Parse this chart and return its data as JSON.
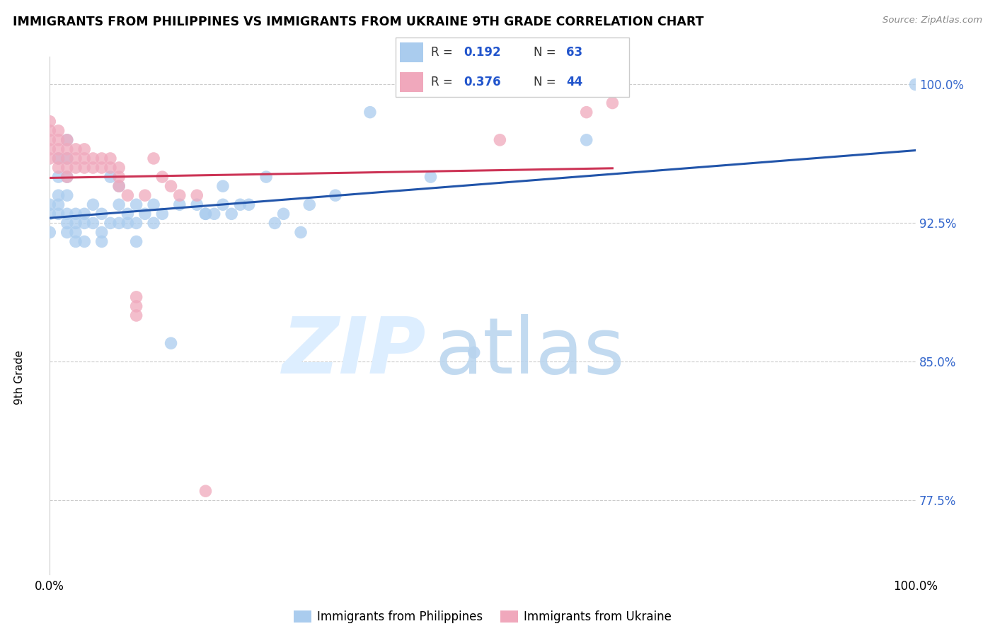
{
  "title": "IMMIGRANTS FROM PHILIPPINES VS IMMIGRANTS FROM UKRAINE 9TH GRADE CORRELATION CHART",
  "source": "Source: ZipAtlas.com",
  "ylabel": "9th Grade",
  "xlim": [
    0,
    1
  ],
  "ylim": [
    0.735,
    1.015
  ],
  "yticks": [
    0.775,
    0.85,
    0.925,
    1.0
  ],
  "ytick_labels": [
    "77.5%",
    "85.0%",
    "92.5%",
    "100.0%"
  ],
  "xticks": [
    0.0,
    0.2,
    0.4,
    0.6,
    0.8,
    1.0
  ],
  "xtick_labels": [
    "0.0%",
    "",
    "",
    "",
    "",
    "100.0%"
  ],
  "r_philippines": 0.192,
  "n_philippines": 63,
  "r_ukraine": 0.376,
  "n_ukraine": 44,
  "blue_scatter_color": "#aaccee",
  "pink_scatter_color": "#f0a8bc",
  "blue_line_color": "#2255aa",
  "pink_line_color": "#cc3355",
  "legend_r_color": "#2255cc",
  "philippines_x": [
    0.0,
    0.0,
    0.0,
    0.01,
    0.01,
    0.01,
    0.01,
    0.01,
    0.02,
    0.02,
    0.02,
    0.02,
    0.02,
    0.02,
    0.02,
    0.03,
    0.03,
    0.03,
    0.03,
    0.04,
    0.04,
    0.04,
    0.05,
    0.05,
    0.06,
    0.06,
    0.06,
    0.07,
    0.07,
    0.08,
    0.08,
    0.08,
    0.09,
    0.09,
    0.1,
    0.1,
    0.1,
    0.11,
    0.12,
    0.12,
    0.13,
    0.14,
    0.15,
    0.17,
    0.18,
    0.18,
    0.19,
    0.2,
    0.2,
    0.21,
    0.22,
    0.23,
    0.25,
    0.26,
    0.27,
    0.29,
    0.3,
    0.33,
    0.37,
    0.44,
    0.49,
    0.62,
    1.0
  ],
  "philippines_y": [
    0.935,
    0.93,
    0.92,
    0.96,
    0.95,
    0.94,
    0.935,
    0.93,
    0.97,
    0.96,
    0.95,
    0.94,
    0.93,
    0.925,
    0.92,
    0.93,
    0.925,
    0.92,
    0.915,
    0.93,
    0.925,
    0.915,
    0.935,
    0.925,
    0.93,
    0.92,
    0.915,
    0.95,
    0.925,
    0.945,
    0.935,
    0.925,
    0.93,
    0.925,
    0.935,
    0.925,
    0.915,
    0.93,
    0.935,
    0.925,
    0.93,
    0.86,
    0.935,
    0.935,
    0.93,
    0.93,
    0.93,
    0.945,
    0.935,
    0.93,
    0.935,
    0.935,
    0.95,
    0.925,
    0.93,
    0.92,
    0.935,
    0.94,
    0.985,
    0.95,
    0.855,
    0.97,
    1.0
  ],
  "ukraine_x": [
    0.0,
    0.0,
    0.0,
    0.0,
    0.0,
    0.01,
    0.01,
    0.01,
    0.01,
    0.01,
    0.02,
    0.02,
    0.02,
    0.02,
    0.02,
    0.03,
    0.03,
    0.03,
    0.04,
    0.04,
    0.04,
    0.05,
    0.05,
    0.06,
    0.06,
    0.07,
    0.07,
    0.08,
    0.08,
    0.08,
    0.09,
    0.1,
    0.1,
    0.1,
    0.11,
    0.12,
    0.13,
    0.14,
    0.15,
    0.17,
    0.18,
    0.52,
    0.62,
    0.65
  ],
  "ukraine_y": [
    0.98,
    0.975,
    0.97,
    0.965,
    0.96,
    0.975,
    0.97,
    0.965,
    0.96,
    0.955,
    0.97,
    0.965,
    0.96,
    0.955,
    0.95,
    0.965,
    0.96,
    0.955,
    0.965,
    0.96,
    0.955,
    0.96,
    0.955,
    0.96,
    0.955,
    0.96,
    0.955,
    0.955,
    0.95,
    0.945,
    0.94,
    0.885,
    0.88,
    0.875,
    0.94,
    0.96,
    0.95,
    0.945,
    0.94,
    0.94,
    0.78,
    0.97,
    0.985,
    0.99
  ]
}
